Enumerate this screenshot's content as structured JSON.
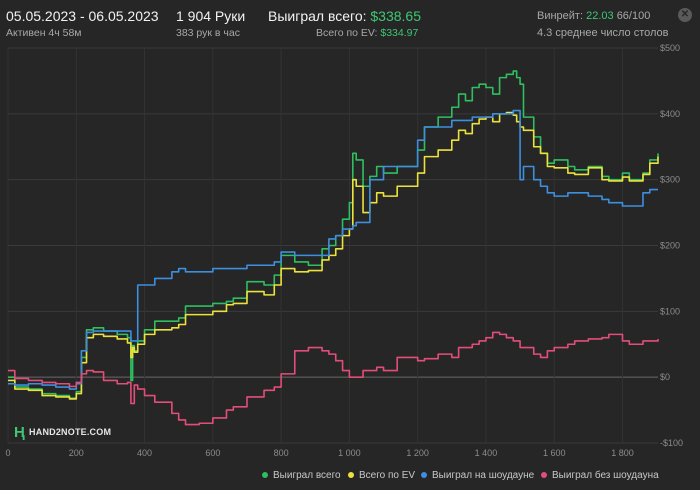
{
  "header": {
    "date_range": "05.05.2023 - 06.05.2023",
    "active": "Активен 4ч 58м",
    "hands": "1 904 Руки",
    "hands_per_hour": "383 рук в час",
    "won_total_label": "Выиграл всего:",
    "won_total_value": "$338.65",
    "ev_total_label": "Всего по EV:",
    "ev_total_value": "$334.97",
    "winrate_label": "Винрейт:",
    "winrate_value": "22.03",
    "winrate_rest": "66/100",
    "avg_tables": "4.3 среднее число столов",
    "close_icon": "close-icon"
  },
  "watermark": {
    "logo_icon": "hand2note-logo",
    "text": "HAND2NOTE.COM"
  },
  "colors": {
    "won": "#2fbf5f",
    "ev": "#ece23c",
    "showdown": "#3d8fe0",
    "nonshowdown": "#e34d7a",
    "bg": "#262626"
  },
  "chart_data": {
    "type": "line",
    "xlim": [
      0,
      1904
    ],
    "ylim": [
      -100,
      500
    ],
    "x_ticks": [
      0,
      200,
      400,
      600,
      800,
      1000,
      1200,
      1400,
      1600,
      1800
    ],
    "x_tick_labels": [
      "0",
      "200",
      "400",
      "600",
      "800",
      "1 000",
      "1 200",
      "1 400",
      "1 600",
      "1 800"
    ],
    "y_ticks": [
      -100,
      0,
      100,
      200,
      300,
      400,
      500
    ],
    "y_tick_labels": [
      "-$100",
      "$0",
      "$100",
      "$200",
      "$300",
      "$400",
      "$500"
    ],
    "grid": true,
    "legend_position": "bottom-right",
    "series": [
      {
        "name": "Выиграл всего",
        "color": "#2fbf5f",
        "x": [
          0,
          20,
          60,
          100,
          140,
          180,
          200,
          215,
          230,
          250,
          280,
          320,
          350,
          360,
          365,
          370,
          380,
          400,
          430,
          480,
          500,
          520,
          560,
          600,
          640,
          660,
          700,
          750,
          780,
          800,
          840,
          880,
          920,
          940,
          960,
          980,
          1000,
          1010,
          1020,
          1040,
          1060,
          1080,
          1100,
          1140,
          1200,
          1220,
          1260,
          1300,
          1320,
          1340,
          1360,
          1380,
          1400,
          1420,
          1440,
          1460,
          1480,
          1490,
          1500,
          1510,
          1540,
          1560,
          1580,
          1600,
          1640,
          1660,
          1700,
          1740,
          1760,
          1800,
          1820,
          1860,
          1880,
          1904
        ],
        "y": [
          0,
          -15,
          -18,
          -25,
          -28,
          -32,
          -22,
          30,
          72,
          75,
          70,
          65,
          60,
          -5,
          48,
          40,
          55,
          72,
          85,
          85,
          90,
          108,
          108,
          112,
          115,
          120,
          145,
          140,
          155,
          185,
          175,
          170,
          195,
          200,
          215,
          240,
          265,
          340,
          330,
          290,
          305,
          320,
          310,
          320,
          345,
          380,
          395,
          410,
          430,
          420,
          440,
          445,
          440,
          430,
          455,
          460,
          465,
          455,
          445,
          395,
          365,
          340,
          325,
          330,
          320,
          315,
          320,
          305,
          300,
          310,
          300,
          310,
          330,
          340
        ]
      },
      {
        "name": "Всего по EV",
        "color": "#ece23c",
        "x": [
          0,
          20,
          60,
          100,
          140,
          180,
          200,
          215,
          230,
          250,
          280,
          320,
          350,
          360,
          365,
          370,
          380,
          400,
          430,
          480,
          500,
          520,
          560,
          600,
          640,
          660,
          700,
          750,
          780,
          800,
          840,
          880,
          920,
          940,
          960,
          980,
          1000,
          1010,
          1020,
          1040,
          1060,
          1080,
          1100,
          1140,
          1200,
          1220,
          1260,
          1300,
          1320,
          1340,
          1360,
          1380,
          1400,
          1420,
          1440,
          1460,
          1480,
          1490,
          1500,
          1510,
          1540,
          1560,
          1580,
          1600,
          1640,
          1660,
          1700,
          1740,
          1760,
          1800,
          1820,
          1860,
          1880,
          1904
        ],
        "y": [
          -5,
          -18,
          -20,
          -28,
          -30,
          -33,
          -25,
          22,
          60,
          65,
          62,
          58,
          52,
          30,
          45,
          38,
          50,
          65,
          72,
          75,
          80,
          95,
          95,
          100,
          110,
          112,
          130,
          125,
          140,
          165,
          160,
          162,
          178,
          185,
          195,
          215,
          225,
          300,
          290,
          250,
          265,
          280,
          275,
          290,
          310,
          335,
          345,
          360,
          375,
          370,
          385,
          392,
          395,
          388,
          400,
          402,
          398,
          388,
          380,
          375,
          350,
          340,
          320,
          318,
          310,
          308,
          318,
          300,
          298,
          304,
          298,
          308,
          325,
          335
        ]
      },
      {
        "name": "Выиграл на шоудауне",
        "color": "#3d8fe0",
        "x": [
          0,
          20,
          60,
          100,
          140,
          180,
          200,
          215,
          230,
          250,
          280,
          320,
          350,
          360,
          380,
          400,
          430,
          480,
          500,
          520,
          560,
          600,
          640,
          660,
          700,
          750,
          780,
          800,
          840,
          880,
          920,
          940,
          960,
          980,
          1000,
          1010,
          1020,
          1040,
          1060,
          1080,
          1100,
          1140,
          1200,
          1220,
          1260,
          1300,
          1320,
          1340,
          1360,
          1380,
          1400,
          1420,
          1440,
          1460,
          1480,
          1490,
          1500,
          1510,
          1540,
          1560,
          1580,
          1600,
          1640,
          1660,
          1700,
          1740,
          1760,
          1800,
          1820,
          1860,
          1880,
          1904
        ],
        "y": [
          -10,
          -12,
          -10,
          -12,
          -15,
          -18,
          -10,
          40,
          68,
          70,
          70,
          70,
          70,
          55,
          140,
          140,
          150,
          160,
          165,
          160,
          160,
          165,
          165,
          165,
          170,
          170,
          175,
          190,
          185,
          185,
          185,
          210,
          215,
          225,
          225,
          230,
          235,
          235,
          300,
          300,
          320,
          320,
          360,
          380,
          380,
          390,
          390,
          390,
          395,
          395,
          395,
          400,
          400,
          400,
          405,
          405,
          300,
          320,
          300,
          290,
          280,
          275,
          280,
          280,
          275,
          270,
          265,
          260,
          260,
          280,
          285,
          285
        ]
      },
      {
        "name": "Выиграл без шоудауна",
        "color": "#e34d7a",
        "x": [
          0,
          20,
          60,
          100,
          140,
          180,
          200,
          215,
          230,
          250,
          280,
          320,
          350,
          360,
          370,
          380,
          400,
          430,
          480,
          500,
          520,
          560,
          600,
          640,
          660,
          700,
          750,
          780,
          800,
          840,
          880,
          920,
          940,
          960,
          980,
          1000,
          1040,
          1080,
          1100,
          1140,
          1200,
          1220,
          1260,
          1300,
          1320,
          1340,
          1360,
          1380,
          1400,
          1420,
          1440,
          1460,
          1480,
          1500,
          1540,
          1560,
          1580,
          1600,
          1640,
          1660,
          1700,
          1740,
          1760,
          1800,
          1820,
          1860,
          1880,
          1904
        ],
        "y": [
          10,
          -2,
          -5,
          -8,
          -10,
          -14,
          -8,
          5,
          10,
          8,
          -5,
          -10,
          -8,
          -40,
          -12,
          -18,
          -28,
          -38,
          -55,
          -65,
          -72,
          -70,
          -62,
          -50,
          -45,
          -30,
          -20,
          -15,
          5,
          40,
          45,
          40,
          35,
          25,
          10,
          0,
          10,
          15,
          10,
          30,
          25,
          28,
          35,
          30,
          45,
          45,
          50,
          55,
          60,
          68,
          65,
          60,
          55,
          45,
          35,
          30,
          40,
          45,
          50,
          55,
          58,
          60,
          65,
          55,
          50,
          55,
          55,
          58
        ]
      }
    ]
  },
  "legend": [
    {
      "label": "Выиграл всего",
      "color": "#2fbf5f"
    },
    {
      "label": "Всего по EV",
      "color": "#ece23c"
    },
    {
      "label": "Выиграл на шоудауне",
      "color": "#3d8fe0"
    },
    {
      "label": "Выиграл без шоудауна",
      "color": "#e34d7a"
    }
  ]
}
